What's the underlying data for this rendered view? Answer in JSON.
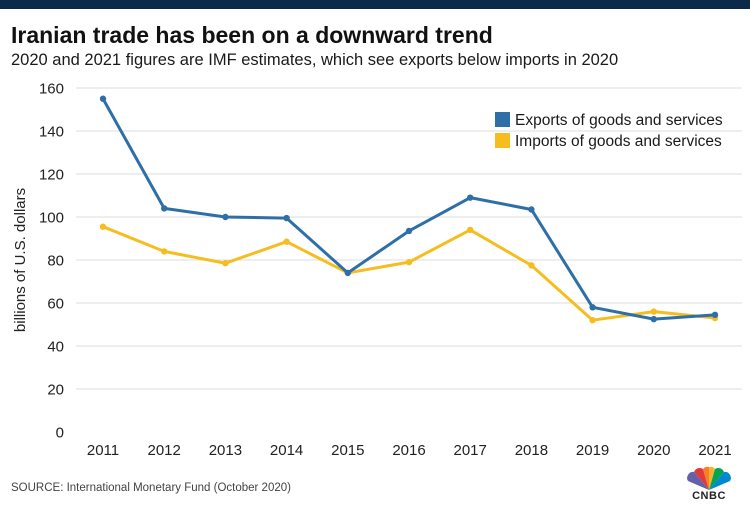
{
  "header": {
    "title": "Iranian trade has been on a downward trend",
    "subtitle": "2020 and 2021 figures are IMF estimates, which see exports below imports in 2020"
  },
  "footer": {
    "source": "SOURCE: International Monetary Fund (October 2020)",
    "logo_text": "CNBC"
  },
  "colors": {
    "exports": "#2e6fa7",
    "imports": "#f5bd1f",
    "grid": "#dcdcdc",
    "axis_text": "#222222",
    "top_bar": "#0b2a4a"
  },
  "chart_data": {
    "type": "line",
    "title": "Iranian trade has been on a downward trend",
    "xlabel": "",
    "ylabel": "billions of U.S. dollars",
    "ylim": [
      0,
      160
    ],
    "yticks": [
      0,
      20,
      40,
      60,
      80,
      100,
      120,
      140,
      160
    ],
    "grid": true,
    "legend_position": "top-right",
    "categories": [
      "2011",
      "2012",
      "2013",
      "2014",
      "2015",
      "2016",
      "2017",
      "2018",
      "2019",
      "2020",
      "2021"
    ],
    "series": [
      {
        "name": "Exports of goods and services",
        "color": "#2e6fa7",
        "values": [
          155,
          104,
          100,
          99.5,
          74,
          93.5,
          109,
          103.5,
          58,
          52.5,
          54.5
        ]
      },
      {
        "name": "Imports of goods and services",
        "color": "#f5bd1f",
        "values": [
          95.5,
          84,
          78.5,
          88.5,
          74,
          79,
          94,
          77.5,
          52,
          56,
          53
        ]
      }
    ]
  }
}
